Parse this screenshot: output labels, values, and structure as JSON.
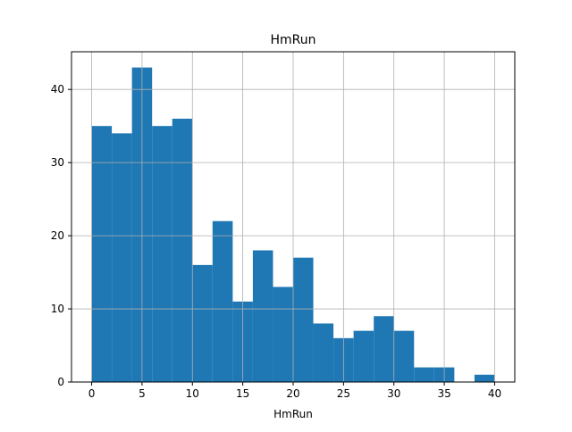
{
  "chart_data": {
    "type": "bar",
    "title": "HmRun",
    "xlabel": "HmRun",
    "ylabel": "",
    "bin_edges": [
      0,
      2,
      4,
      6,
      8,
      10,
      12,
      14,
      16,
      18,
      20,
      22,
      24,
      26,
      28,
      30,
      32,
      34,
      36,
      38,
      40
    ],
    "values": [
      35,
      34,
      43,
      35,
      36,
      16,
      22,
      11,
      18,
      13,
      17,
      8,
      6,
      7,
      9,
      7,
      2,
      2,
      0,
      1
    ],
    "xlim": [
      -2,
      42
    ],
    "ylim": [
      0,
      45.15
    ],
    "xticks": [
      0,
      5,
      10,
      15,
      20,
      25,
      30,
      35,
      40
    ],
    "yticks": [
      0,
      10,
      20,
      30,
      40
    ],
    "grid": true,
    "bar_color": "#1f77b4"
  }
}
